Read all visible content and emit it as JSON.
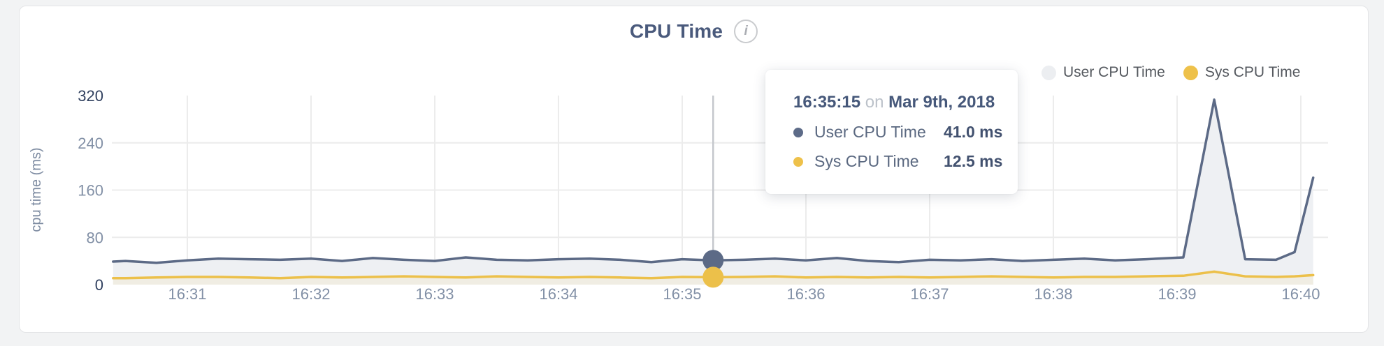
{
  "page": {
    "background": "#f2f3f4"
  },
  "card": {
    "background": "#ffffff",
    "border_color": "#e3e4e6"
  },
  "header": {
    "title": "CPU Time",
    "info_icon_glyph": "i"
  },
  "legend": {
    "items": [
      {
        "label": "User CPU Time",
        "dot_color": "#eceef1"
      },
      {
        "label": "Sys CPU Time",
        "dot_color": "#eec14a"
      }
    ]
  },
  "tooltip": {
    "time": "16:35:15",
    "connector": "on",
    "date": "Mar 9th, 2018",
    "rows": [
      {
        "label": "User CPU Time",
        "value": "41.0 ms",
        "dot_color": "#5d6b88"
      },
      {
        "label": "Sys CPU Time",
        "value": "12.5 ms",
        "dot_color": "#eec14a"
      }
    ]
  },
  "chart_data": {
    "type": "area",
    "title": "CPU Time",
    "xlabel": "",
    "ylabel": "cpu time (ms)",
    "ylim": [
      0,
      320
    ],
    "grid": true,
    "grid_color": "#ececec",
    "legend_position": "top-right",
    "x_unit": "minutes after 16:30",
    "yticks": [
      {
        "v": 0,
        "label": "0",
        "emphasis": true
      },
      {
        "v": 80,
        "label": "80",
        "emphasis": false
      },
      {
        "v": 160,
        "label": "160",
        "emphasis": false
      },
      {
        "v": 240,
        "label": "240",
        "emphasis": false
      },
      {
        "v": 320,
        "label": "320",
        "emphasis": true
      }
    ],
    "xticks": [
      {
        "t": 1,
        "label": "16:31"
      },
      {
        "t": 2,
        "label": "16:32"
      },
      {
        "t": 3,
        "label": "16:33"
      },
      {
        "t": 4,
        "label": "16:34"
      },
      {
        "t": 5,
        "label": "16:35"
      },
      {
        "t": 6,
        "label": "16:36"
      },
      {
        "t": 7,
        "label": "16:37"
      },
      {
        "t": 8,
        "label": "16:38"
      },
      {
        "t": 9,
        "label": "16:39"
      },
      {
        "t": 10,
        "label": "16:40"
      }
    ],
    "axis_text_color": "#8290a6",
    "axis_text_emphasis_color": "#2f3f5e",
    "series": [
      {
        "name": "User CPU Time",
        "color": "#5c6a86",
        "fill": "#eef0f3",
        "points": [
          [
            0.4,
            39
          ],
          [
            0.5,
            40
          ],
          [
            0.75,
            37
          ],
          [
            1.0,
            41
          ],
          [
            1.25,
            44
          ],
          [
            1.5,
            43
          ],
          [
            1.75,
            42
          ],
          [
            2.0,
            44
          ],
          [
            2.25,
            40
          ],
          [
            2.5,
            45
          ],
          [
            2.75,
            42
          ],
          [
            3.0,
            40
          ],
          [
            3.25,
            46
          ],
          [
            3.5,
            42
          ],
          [
            3.75,
            41
          ],
          [
            4.0,
            43
          ],
          [
            4.25,
            44
          ],
          [
            4.5,
            42
          ],
          [
            4.75,
            38
          ],
          [
            5.0,
            43
          ],
          [
            5.25,
            41
          ],
          [
            5.5,
            42
          ],
          [
            5.75,
            44
          ],
          [
            6.0,
            41
          ],
          [
            6.25,
            45
          ],
          [
            6.5,
            40
          ],
          [
            6.75,
            38
          ],
          [
            7.0,
            42
          ],
          [
            7.25,
            41
          ],
          [
            7.5,
            43
          ],
          [
            7.75,
            40
          ],
          [
            8.0,
            42
          ],
          [
            8.25,
            44
          ],
          [
            8.5,
            41
          ],
          [
            8.75,
            43
          ],
          [
            9.05,
            46
          ],
          [
            9.3,
            313
          ],
          [
            9.55,
            43
          ],
          [
            9.8,
            42
          ],
          [
            9.95,
            55
          ],
          [
            10.1,
            181
          ]
        ]
      },
      {
        "name": "Sys CPU Time",
        "color": "#ecc04a",
        "fill": "#f0ede3",
        "points": [
          [
            0.4,
            11
          ],
          [
            0.5,
            11
          ],
          [
            0.75,
            12
          ],
          [
            1.0,
            13
          ],
          [
            1.25,
            13
          ],
          [
            1.5,
            12
          ],
          [
            1.75,
            11
          ],
          [
            2.0,
            13
          ],
          [
            2.25,
            12
          ],
          [
            2.5,
            13
          ],
          [
            2.75,
            14
          ],
          [
            3.0,
            13
          ],
          [
            3.25,
            12
          ],
          [
            3.5,
            14
          ],
          [
            3.75,
            13
          ],
          [
            4.0,
            12
          ],
          [
            4.25,
            13
          ],
          [
            4.5,
            12
          ],
          [
            4.75,
            11
          ],
          [
            5.0,
            13
          ],
          [
            5.25,
            12.5
          ],
          [
            5.5,
            13
          ],
          [
            5.75,
            14
          ],
          [
            6.0,
            12
          ],
          [
            6.25,
            13
          ],
          [
            6.5,
            12
          ],
          [
            6.75,
            13
          ],
          [
            7.0,
            12
          ],
          [
            7.25,
            13
          ],
          [
            7.5,
            14
          ],
          [
            7.75,
            13
          ],
          [
            8.0,
            12
          ],
          [
            8.25,
            13
          ],
          [
            8.5,
            13
          ],
          [
            8.75,
            14
          ],
          [
            9.05,
            15
          ],
          [
            9.3,
            22
          ],
          [
            9.55,
            14
          ],
          [
            9.8,
            13
          ],
          [
            9.95,
            14
          ],
          [
            10.1,
            16
          ]
        ]
      }
    ],
    "crosshair": {
      "t": 5.25,
      "time_label": "16:35:15",
      "values": [
        41.0,
        12.5
      ],
      "line_color": "#c5c8cd"
    }
  }
}
